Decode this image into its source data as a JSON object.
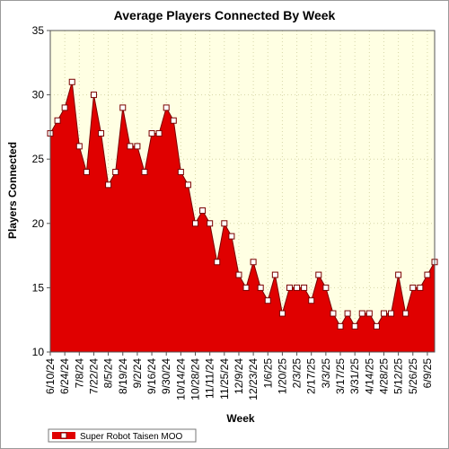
{
  "chart_data": {
    "type": "area",
    "title": "Average Players Connected By Week",
    "xlabel": "Week",
    "ylabel": "Players Connected",
    "ylim": [
      10,
      35
    ],
    "yticks": [
      10,
      15,
      20,
      25,
      30,
      35
    ],
    "grid": true,
    "legend_position": "bottom-left",
    "x_tick_labels": [
      "6/10/24",
      "6/24/24",
      "7/8/24",
      "7/22/24",
      "8/5/24",
      "8/19/24",
      "9/2/24",
      "9/16/24",
      "9/30/24",
      "10/14/24",
      "10/28/24",
      "11/11/24",
      "11/25/24",
      "12/9/24",
      "12/23/24",
      "1/6/25",
      "1/20/25",
      "2/3/25",
      "2/17/25",
      "3/3/25",
      "3/17/25",
      "3/31/25",
      "4/14/25",
      "4/28/25",
      "5/12/25",
      "5/26/25",
      "6/9/25"
    ],
    "x": [
      "6/10/24",
      "6/17/24",
      "6/24/24",
      "7/1/24",
      "7/8/24",
      "7/15/24",
      "7/22/24",
      "7/29/24",
      "8/5/24",
      "8/12/24",
      "8/19/24",
      "8/26/24",
      "9/2/24",
      "9/9/24",
      "9/16/24",
      "9/23/24",
      "9/30/24",
      "10/7/24",
      "10/14/24",
      "10/21/24",
      "10/28/24",
      "11/4/24",
      "11/11/24",
      "11/18/24",
      "11/25/24",
      "12/2/24",
      "12/9/24",
      "12/16/24",
      "12/23/24",
      "12/30/24",
      "1/6/25",
      "1/13/25",
      "1/20/25",
      "1/27/25",
      "2/3/25",
      "2/10/25",
      "2/17/25",
      "2/24/25",
      "3/3/25",
      "3/10/25",
      "3/17/25",
      "3/24/25",
      "3/31/25",
      "4/7/25",
      "4/14/25",
      "4/21/25",
      "4/28/25",
      "5/5/25",
      "5/12/25",
      "5/19/25",
      "5/26/25",
      "6/2/25",
      "6/9/25",
      "6/16/25"
    ],
    "series": [
      {
        "name": "Super Robot Taisen MOO",
        "color": "#e00000",
        "values": [
          27,
          28,
          29,
          31,
          26,
          24,
          30,
          27,
          23,
          24,
          29,
          26,
          26,
          24,
          27,
          27,
          29,
          28,
          24,
          23,
          20,
          21,
          20,
          17,
          20,
          19,
          16,
          15,
          17,
          15,
          14,
          16,
          13,
          15,
          15,
          15,
          14,
          16,
          15,
          13,
          12,
          13,
          12,
          13,
          13,
          12,
          13,
          13,
          16,
          13,
          15,
          15,
          16,
          17
        ]
      }
    ]
  },
  "colors": {
    "plot_background": "#ffffe3",
    "grid": "#d6d6a8",
    "area_fill": "#e00000",
    "area_line": "#7a0000",
    "marker_fill": "#ffffff",
    "marker_stroke": "#7a0000"
  }
}
